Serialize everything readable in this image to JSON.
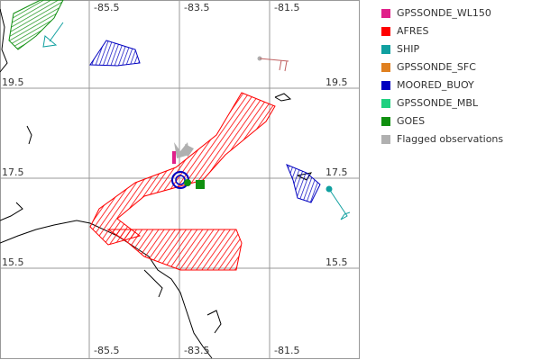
{
  "map": {
    "lon_labels": [
      "-85.5",
      "-83.5",
      "-81.5"
    ],
    "lat_labels": [
      "19.5",
      "17.5",
      "15.5"
    ],
    "legend": [
      {
        "label": "GPSSONDE_WL150",
        "color": "#e0208a"
      },
      {
        "label": "AFRES",
        "color": "#ff0000"
      },
      {
        "label": "SHIP",
        "color": "#10a0a0"
      },
      {
        "label": "GPSSONDE_SFC",
        "color": "#e08020"
      },
      {
        "label": "MOORED_BUOY",
        "color": "#0000c0"
      },
      {
        "label": "GPSSONDE_MBL",
        "color": "#20d080"
      },
      {
        "label": "GOES",
        "color": "#109010"
      },
      {
        "label": "Flagged observations",
        "color": "#b0b0b0"
      }
    ]
  }
}
